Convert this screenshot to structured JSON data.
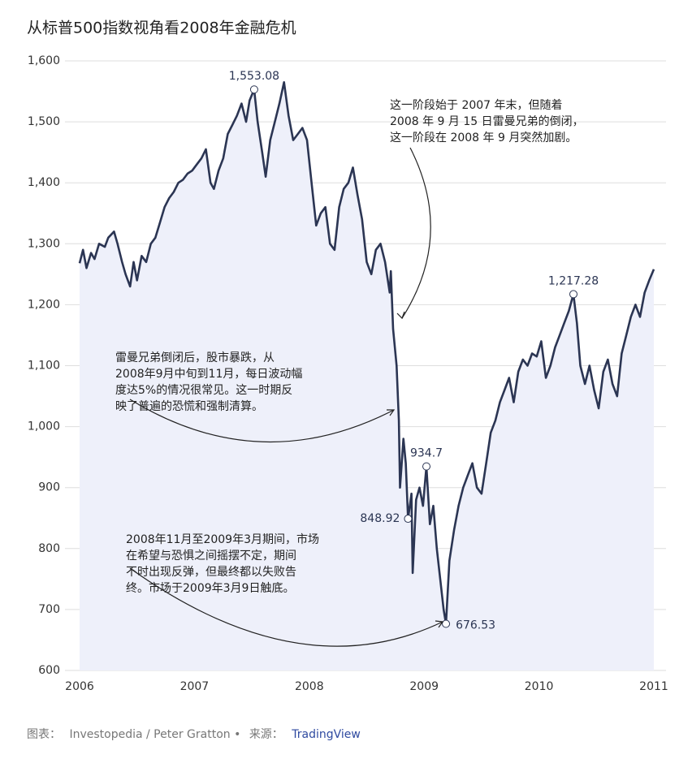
{
  "chart_data": {
    "type": "line",
    "title": "从标普500指数视角看2008年金融危机",
    "color": "#2b3553",
    "area_color": "#eef0fa",
    "grid": true,
    "xlim": [
      2006,
      2011
    ],
    "xticks": [
      2006,
      2007,
      2008,
      2009,
      2010,
      2011
    ],
    "ylim": [
      600,
      1600
    ],
    "yticks": [
      {
        "value": 600,
        "label": "600"
      },
      {
        "value": 700,
        "label": "700"
      },
      {
        "value": 800,
        "label": "800"
      },
      {
        "value": 900,
        "label": "900"
      },
      {
        "value": 1000,
        "label": "1,000"
      },
      {
        "value": 1100,
        "label": "1,100"
      },
      {
        "value": 1200,
        "label": "1,200"
      },
      {
        "value": 1300,
        "label": "1,300"
      },
      {
        "value": 1400,
        "label": "1,400"
      },
      {
        "value": 1500,
        "label": "1,500"
      },
      {
        "value": 1600,
        "label": "1,600"
      }
    ],
    "x": [
      2006.0,
      2006.03,
      2006.06,
      2006.1,
      2006.13,
      2006.17,
      2006.22,
      2006.25,
      2006.3,
      2006.33,
      2006.37,
      2006.4,
      2006.44,
      2006.47,
      2006.5,
      2006.54,
      2006.58,
      2006.62,
      2006.66,
      2006.7,
      2006.74,
      2006.78,
      2006.82,
      2006.86,
      2006.9,
      2006.94,
      2006.98,
      2007.02,
      2007.06,
      2007.1,
      2007.14,
      2007.17,
      2007.21,
      2007.25,
      2007.29,
      2007.33,
      2007.37,
      2007.41,
      2007.45,
      2007.48,
      2007.52,
      2007.55,
      2007.59,
      2007.62,
      2007.66,
      2007.7,
      2007.74,
      2007.78,
      2007.82,
      2007.86,
      2007.9,
      2007.94,
      2007.98,
      2008.02,
      2008.06,
      2008.1,
      2008.14,
      2008.18,
      2008.22,
      2008.26,
      2008.3,
      2008.34,
      2008.38,
      2008.42,
      2008.46,
      2008.5,
      2008.54,
      2008.58,
      2008.62,
      2008.66,
      2008.7,
      2008.71,
      2008.73,
      2008.76,
      2008.78,
      2008.79,
      2008.82,
      2008.84,
      2008.86,
      2008.89,
      2008.9,
      2008.93,
      2008.96,
      2008.99,
      2009.02,
      2009.05,
      2009.08,
      2009.11,
      2009.14,
      2009.17,
      2009.19,
      2009.22,
      2009.26,
      2009.3,
      2009.34,
      2009.38,
      2009.42,
      2009.46,
      2009.5,
      2009.54,
      2009.58,
      2009.62,
      2009.66,
      2009.7,
      2009.74,
      2009.78,
      2009.82,
      2009.86,
      2009.9,
      2009.94,
      2009.98,
      2010.02,
      2010.06,
      2010.1,
      2010.14,
      2010.18,
      2010.22,
      2010.26,
      2010.3,
      2010.33,
      2010.36,
      2010.4,
      2010.44,
      2010.48,
      2010.52,
      2010.56,
      2010.6,
      2010.64,
      2010.68,
      2010.72,
      2010.76,
      2010.8,
      2010.84,
      2010.88,
      2010.92,
      2010.96,
      2011.0
    ],
    "values": [
      1268,
      1290,
      1260,
      1285,
      1275,
      1300,
      1295,
      1310,
      1320,
      1300,
      1270,
      1250,
      1230,
      1270,
      1240,
      1280,
      1270,
      1300,
      1310,
      1335,
      1360,
      1375,
      1385,
      1400,
      1405,
      1415,
      1420,
      1430,
      1440,
      1455,
      1400,
      1390,
      1420,
      1440,
      1480,
      1495,
      1510,
      1530,
      1500,
      1535,
      1553.08,
      1500,
      1450,
      1410,
      1470,
      1500,
      1530,
      1565,
      1510,
      1470,
      1480,
      1490,
      1470,
      1400,
      1330,
      1350,
      1360,
      1300,
      1290,
      1360,
      1390,
      1400,
      1425,
      1380,
      1340,
      1270,
      1250,
      1290,
      1300,
      1270,
      1220,
      1255,
      1160,
      1100,
      1010,
      900,
      980,
      940,
      848.92,
      890,
      760,
      880,
      900,
      870,
      934.7,
      840,
      870,
      800,
      750,
      700,
      676.53,
      780,
      830,
      870,
      900,
      920,
      940,
      900,
      890,
      940,
      990,
      1010,
      1040,
      1060,
      1080,
      1040,
      1090,
      1110,
      1100,
      1120,
      1115,
      1140,
      1080,
      1100,
      1130,
      1150,
      1170,
      1190,
      1217.28,
      1170,
      1100,
      1070,
      1100,
      1060,
      1030,
      1090,
      1110,
      1070,
      1050,
      1120,
      1150,
      1180,
      1200,
      1180,
      1220,
      1240,
      1258
    ],
    "highlights": [
      {
        "x": 2007.52,
        "value": 1553.08,
        "label": "1,553.08"
      },
      {
        "x": 2009.02,
        "value": 934.7,
        "label": "934.7"
      },
      {
        "x": 2008.86,
        "value": 848.92,
        "label": "848.92"
      },
      {
        "x": 2009.19,
        "value": 676.53,
        "label": "676.53"
      },
      {
        "x": 2010.3,
        "value": 1217.28,
        "label": "1,217.28"
      }
    ],
    "annotations": [
      {
        "lines": [
          "这一阶段始于 2007 年末，但随着",
          "2008 年 9 月 15 日雷曼兄弟的倒闭，",
          "这一阶段在 2008 年 9 月突然加剧。"
        ]
      },
      {
        "lines": [
          "雷曼兄弟倒闭后，股市暴跌，从",
          "2008年9月中旬到11月，每日波动幅",
          "度达5%的情况很常见。这一时期反",
          "映了普遍的恐慌和强制清算。"
        ]
      },
      {
        "lines": [
          "2008年11月至2009年3月期间，市场",
          "在希望与恐惧之间摇摆不定，期间",
          "不时出现反弹，但最终都以失败告",
          "终。市场于2009年3月9日触底。"
        ]
      }
    ],
    "footer": {
      "chart_label": "图表：",
      "chart_by": "Investopedia / Peter Gratton •",
      "source_label": "来源：",
      "source": "TradingView"
    }
  }
}
